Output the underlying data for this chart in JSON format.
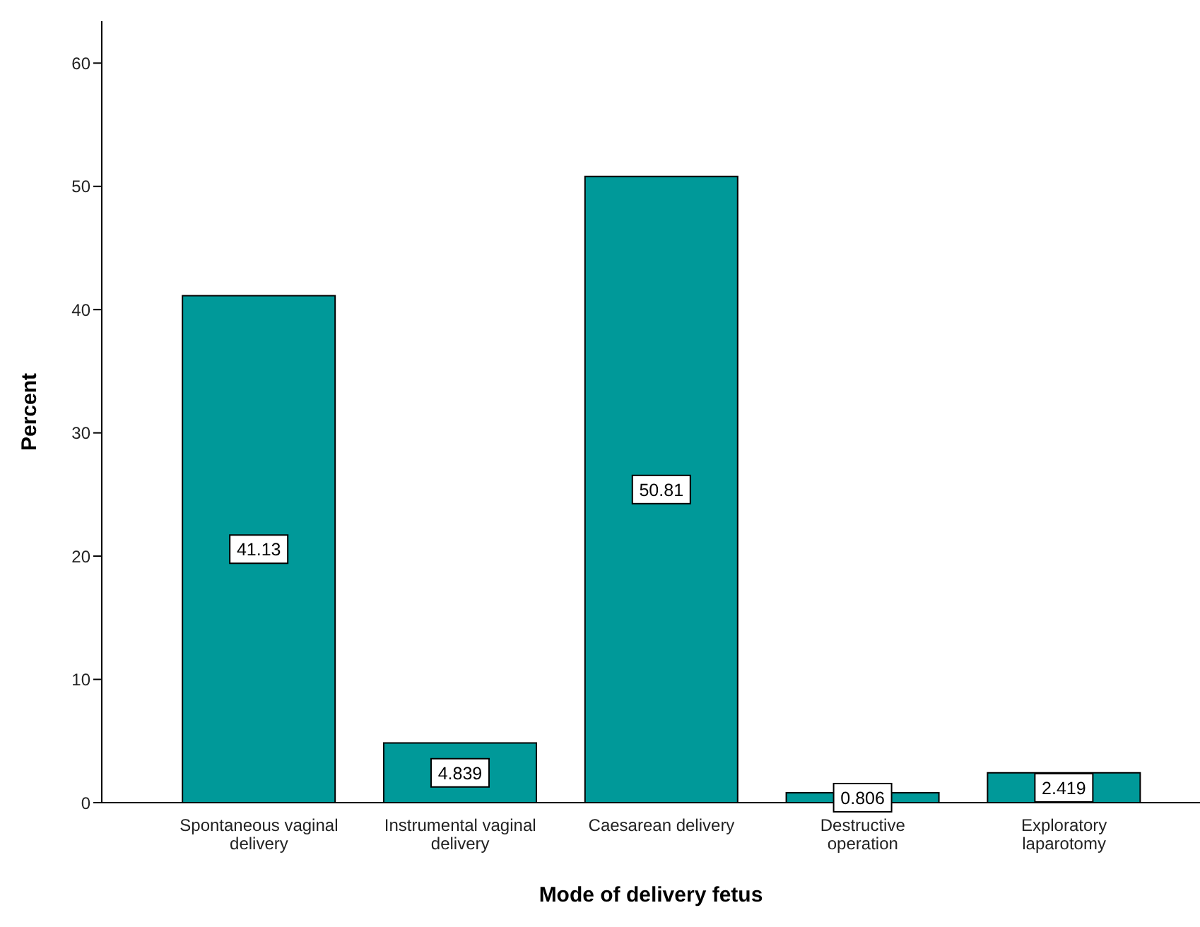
{
  "chart_data": {
    "type": "bar",
    "xlabel": "Mode of delivery fetus",
    "ylabel": "Percent",
    "categories": [
      "Spontaneous vaginal delivery",
      "Instrumental vaginal delivery",
      "Caesarean delivery",
      "Destructive operation",
      "Exploratory laparotomy"
    ],
    "values": [
      41.13,
      4.839,
      50.81,
      0.806,
      2.419
    ],
    "color": "#009999",
    "ylim": [
      0,
      63.4
    ],
    "yticks": [
      0,
      10,
      20,
      30,
      40,
      50,
      60
    ],
    "grid": false,
    "data_labels": true
  }
}
